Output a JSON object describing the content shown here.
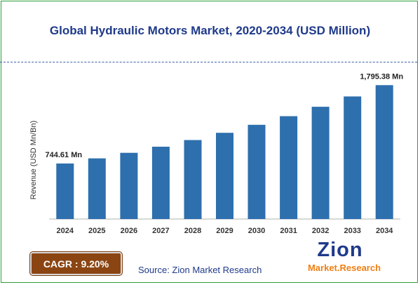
{
  "title": "Global Hydraulic Motors Market, 2020-2034 (USD Million)",
  "cagr_label": "CAGR : 9.20%",
  "source": "Source: Zion Market Research",
  "logo": {
    "top": "Zion",
    "bottom": "Market.Research"
  },
  "colors": {
    "bar": "#2e6fad",
    "title": "#1f3a8a",
    "cagr_bg": "#8b4513",
    "frame": "#2f9e3a"
  },
  "chart_data": {
    "type": "bar",
    "ylabel": "Revenue (USD Mn/Bn)",
    "xlabel": "",
    "categories": [
      "2024",
      "2025",
      "2026",
      "2027",
      "2028",
      "2029",
      "2030",
      "2031",
      "2032",
      "2033",
      "2034"
    ],
    "values": [
      744.61,
      813.0,
      888.0,
      970.0,
      1059.0,
      1156.0,
      1263.0,
      1379.0,
      1505.0,
      1644.0,
      1795.38
    ],
    "data_labels": [
      {
        "index": 0,
        "text": "744.61 Mn"
      },
      {
        "index": 10,
        "text": "1,795.38 Mn"
      }
    ],
    "ylim": [
      0,
      1930
    ],
    "grid": false,
    "legend": "none"
  }
}
